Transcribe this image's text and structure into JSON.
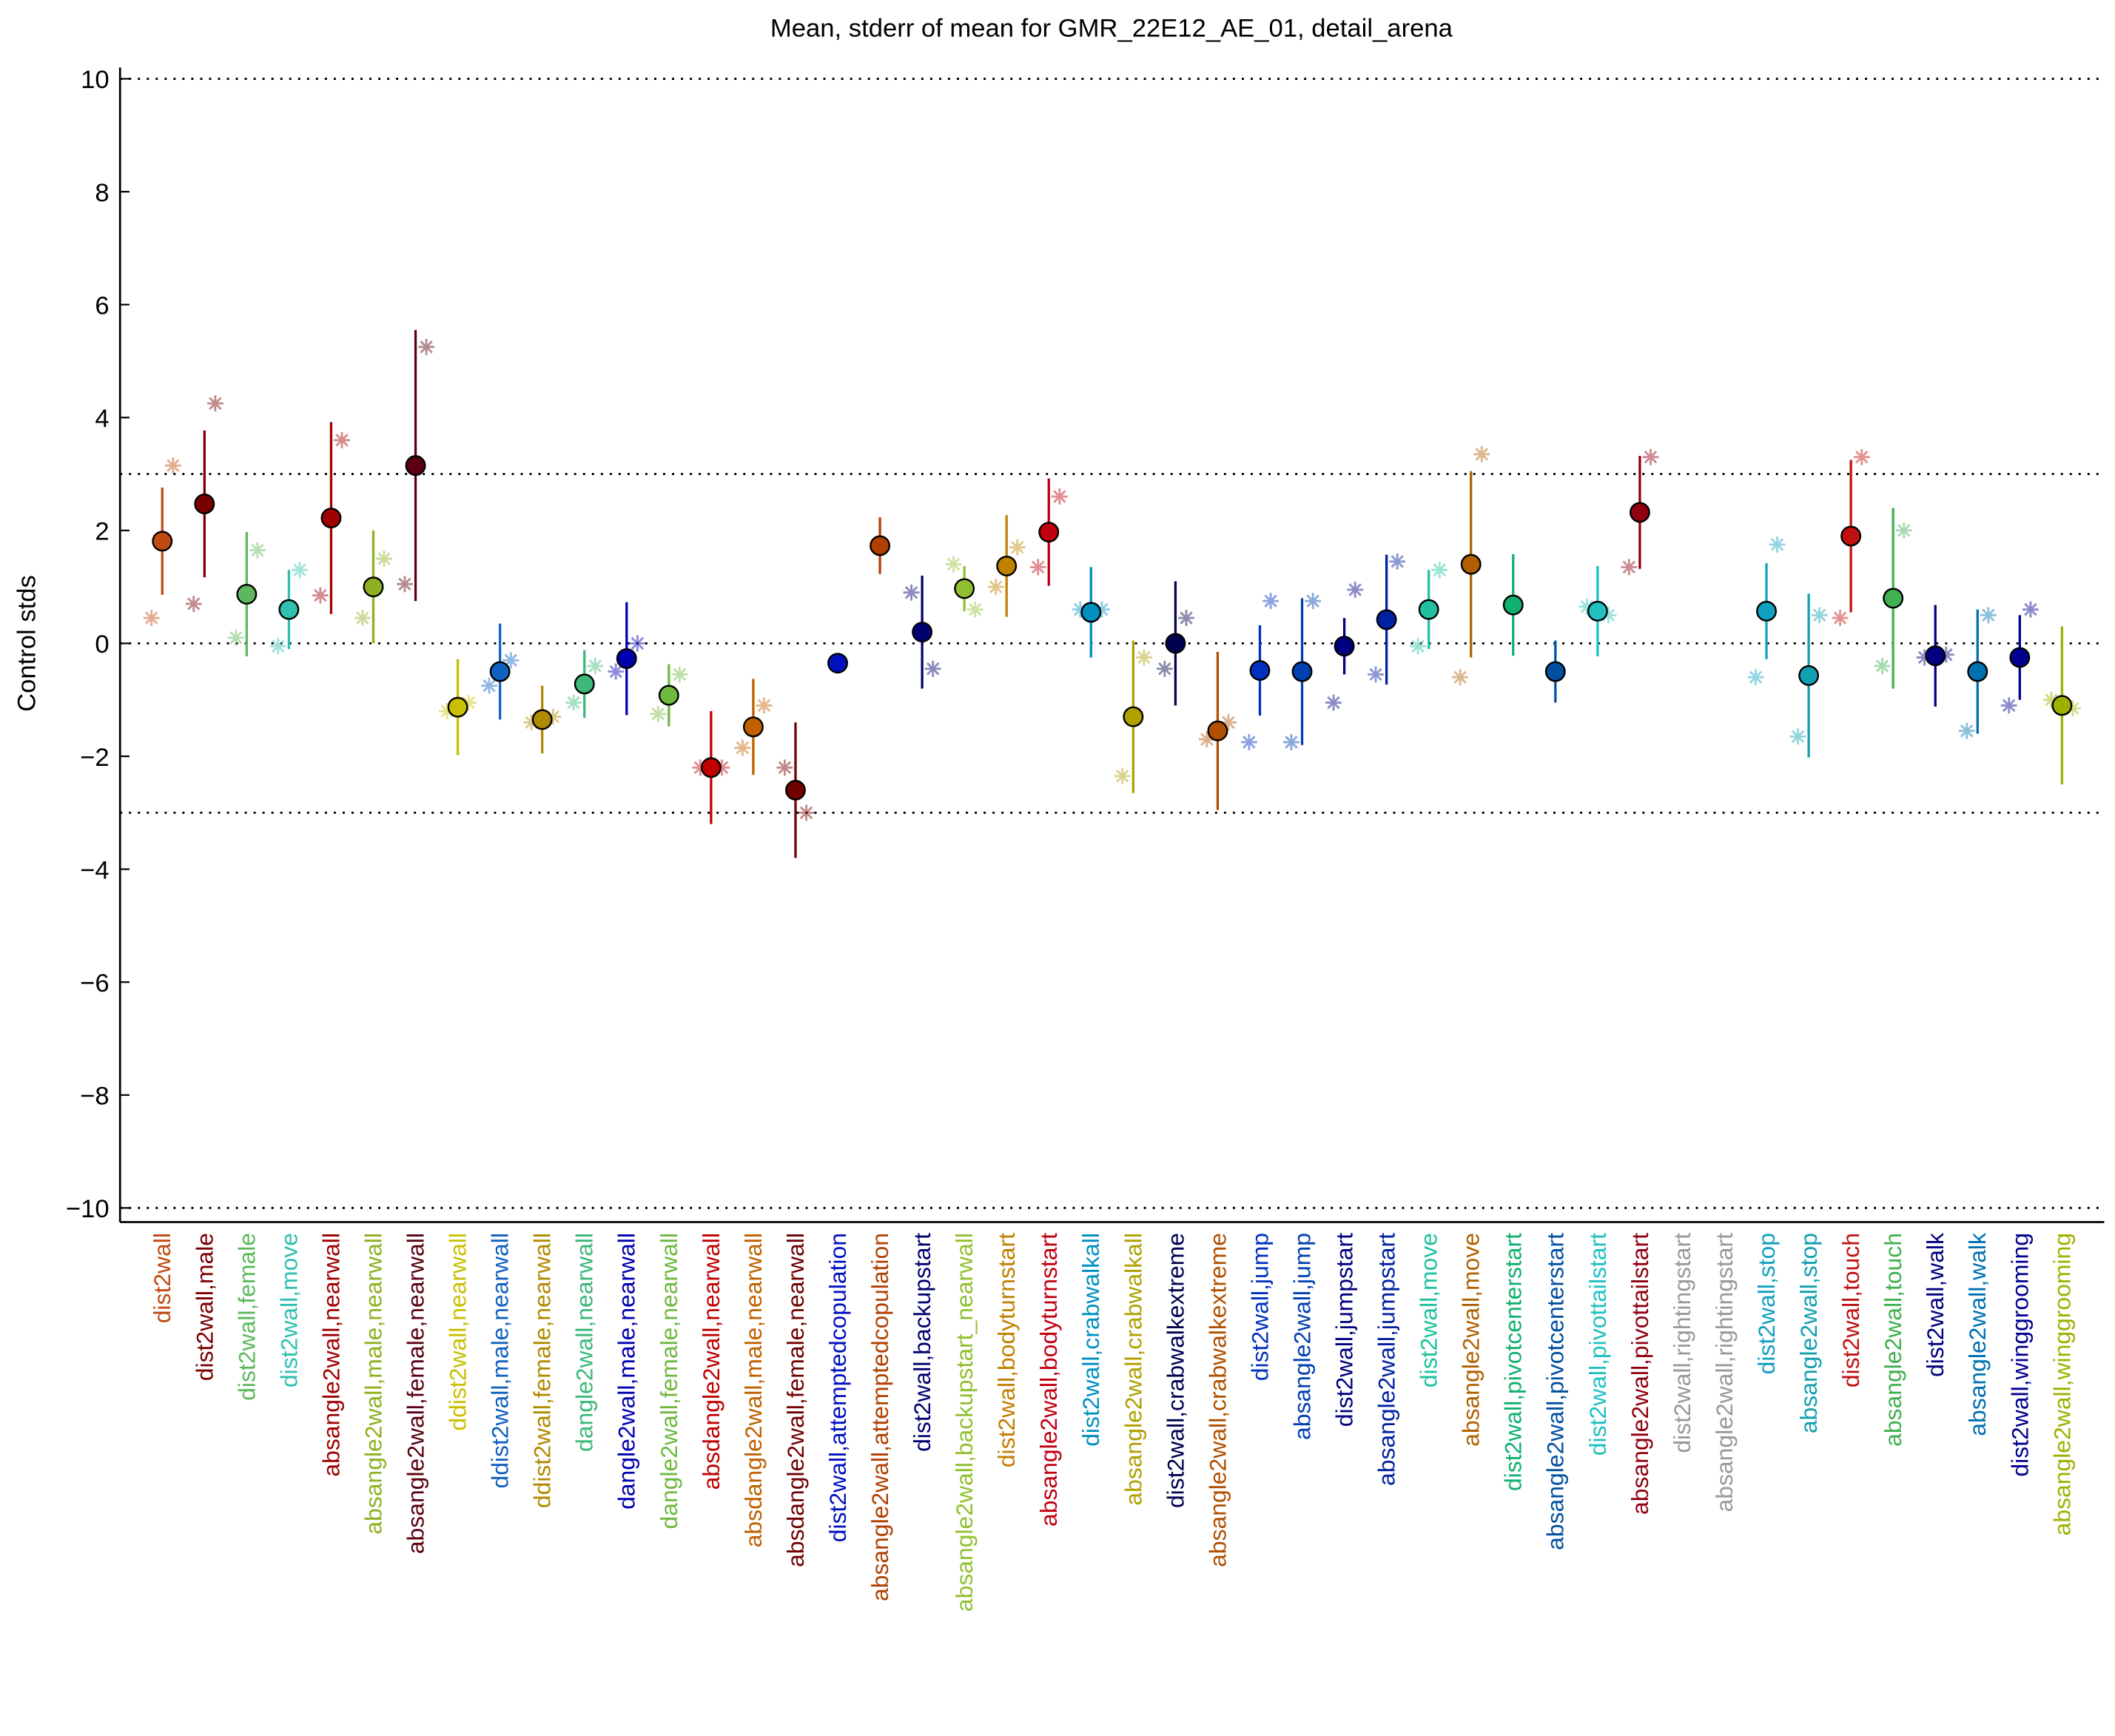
{
  "chart_data": {
    "type": "errorbar",
    "title": "Mean, stderr of mean for GMR_22E12_AE_01, detail_arena",
    "y_label": "Control stds",
    "categories": [
      "dist2wall",
      "dist2wall,male",
      "dist2wall,female",
      "dist2wall,move",
      "absangle2wall,nearwall",
      "absangle2wall,male,nearwall",
      "absangle2wall,female,nearwall",
      "ddist2wall,nearwall",
      "ddist2wall,male,nearwall",
      "ddist2wall,female,nearwall",
      "dangle2wall,nearwall",
      "dangle2wall,male,nearwall",
      "dangle2wall,female,nearwall",
      "absdangle2wall,nearwall",
      "absdangle2wall,male,nearwall",
      "absdangle2wall,female,nearwall",
      "dist2wall,attemptedcopulation",
      "absangle2wall,attemptedcopulation",
      "dist2wall,backupstart",
      "absangle2wall,backupstart_nearwall",
      "dist2wall,bodyturnstart",
      "absangle2wall,bodyturnstart",
      "dist2wall,crabwalkall",
      "absangle2wall,crabwalkall",
      "dist2wall,crabwalkextreme",
      "absangle2wall,crabwalkextreme",
      "dist2wall,jump",
      "absangle2wall,jump",
      "dist2wall,jumpstart",
      "absangle2wall,jumpstart",
      "dist2wall,move",
      "absangle2wall,move",
      "dist2wall,pivotcenterstart",
      "absangle2wall,pivotcenterstart",
      "dist2wall,pivottailstart",
      "absangle2wall,pivottailstart",
      "dist2wall,rightingstart",
      "absangle2wall,rightingstart",
      "dist2wall,stop",
      "absangle2wall,stop",
      "dist2wall,touch",
      "absangle2wall,touch",
      "dist2wall,walk",
      "absangle2wall,walk",
      "dist2wall,winggrooming",
      "absangle2wall,winggrooming"
    ],
    "values": [
      1.81,
      2.47,
      0.87,
      0.6,
      2.22,
      1.0,
      3.15,
      -1.13,
      -0.5,
      -1.35,
      -0.72,
      -0.27,
      -0.92,
      -2.2,
      -1.48,
      -2.6,
      -0.35,
      1.73,
      0.2,
      0.97,
      1.37,
      1.97,
      0.55,
      -1.3,
      0.0,
      -1.55,
      -0.48,
      -0.5,
      -0.05,
      0.42,
      0.6,
      1.4,
      0.68,
      -0.5,
      0.57,
      2.32,
      null,
      null,
      0.57,
      -0.57,
      1.9,
      0.8,
      -0.22,
      -0.5,
      -0.25,
      -1.1
    ],
    "errors": [
      0.95,
      1.3,
      1.1,
      0.7,
      1.7,
      1.0,
      2.4,
      0.85,
      0.85,
      0.6,
      0.6,
      1.0,
      0.55,
      1.0,
      0.85,
      1.2,
      0,
      0.5,
      1.0,
      0.4,
      0.9,
      0.95,
      0.8,
      1.35,
      1.1,
      1.4,
      0.8,
      1.3,
      0.5,
      1.15,
      0.7,
      1.65,
      0.9,
      0.55,
      0.8,
      1.0,
      null,
      null,
      0.85,
      1.45,
      1.35,
      1.6,
      0.9,
      1.1,
      0.75,
      1.4
    ],
    "points_left": [
      0.45,
      0.7,
      0.1,
      -0.05,
      0.85,
      0.45,
      1.05,
      -1.2,
      -0.75,
      -1.4,
      -1.05,
      -0.5,
      -1.25,
      -2.2,
      -1.85,
      -2.2,
      null,
      null,
      0.9,
      1.4,
      1.0,
      1.35,
      0.6,
      -2.35,
      -0.45,
      -1.7,
      -1.75,
      -1.75,
      -1.05,
      -0.55,
      -0.05,
      -0.6,
      null,
      null,
      0.65,
      1.35,
      null,
      null,
      -0.6,
      -1.65,
      0.45,
      -0.4,
      -0.25,
      -1.55,
      -1.1,
      -1.0
    ],
    "points_right": [
      3.15,
      4.25,
      1.65,
      1.3,
      3.6,
      1.5,
      5.25,
      -1.05,
      -0.3,
      -1.3,
      -0.4,
      0.0,
      -0.55,
      -2.2,
      -1.1,
      -3.0,
      null,
      null,
      -0.45,
      0.6,
      1.7,
      2.6,
      0.6,
      -0.25,
      0.45,
      -1.4,
      0.75,
      0.75,
      0.95,
      1.45,
      1.3,
      3.35,
      null,
      null,
      0.5,
      3.3,
      null,
      null,
      1.75,
      0.5,
      3.3,
      2.0,
      -0.2,
      0.5,
      0.6,
      -1.15
    ],
    "colors": [
      "#c04a10",
      "#7a0000",
      "#5db85d",
      "#2fc0b0",
      "#a00000",
      "#8fb020",
      "#5a0010",
      "#c8c000",
      "#1060c0",
      "#b08a00",
      "#3cb878",
      "#0000b0",
      "#70b840",
      "#c00000",
      "#c06000",
      "#700000",
      "#0010c0",
      "#b04000",
      "#000070",
      "#90c030",
      "#c08000",
      "#c00010",
      "#0090c0",
      "#b0a000",
      "#000050",
      "#b05000",
      "#0030c0",
      "#0040b0",
      "#000080",
      "#0020a0",
      "#20c0a0",
      "#b06000",
      "#10b070",
      "#0050a0",
      "#20c0c0",
      "#900010",
      "#999999",
      "#999999",
      "#10a0c0",
      "#10a0b0",
      "#c01010",
      "#40b050",
      "#000080",
      "#0070b0",
      "#000090",
      "#a0b000"
    ],
    "ylim": [
      -10.25,
      10.2
    ],
    "yticks": [
      {
        "value": -10,
        "label": "−10"
      },
      {
        "value": -8,
        "label": "−8"
      },
      {
        "value": -6,
        "label": "−6"
      },
      {
        "value": -4,
        "label": "−4"
      },
      {
        "value": -2,
        "label": "−2"
      },
      0,
      2,
      4,
      6,
      8,
      10
    ],
    "reference_lines": [
      10,
      3,
      0,
      -3,
      -10
    ]
  }
}
